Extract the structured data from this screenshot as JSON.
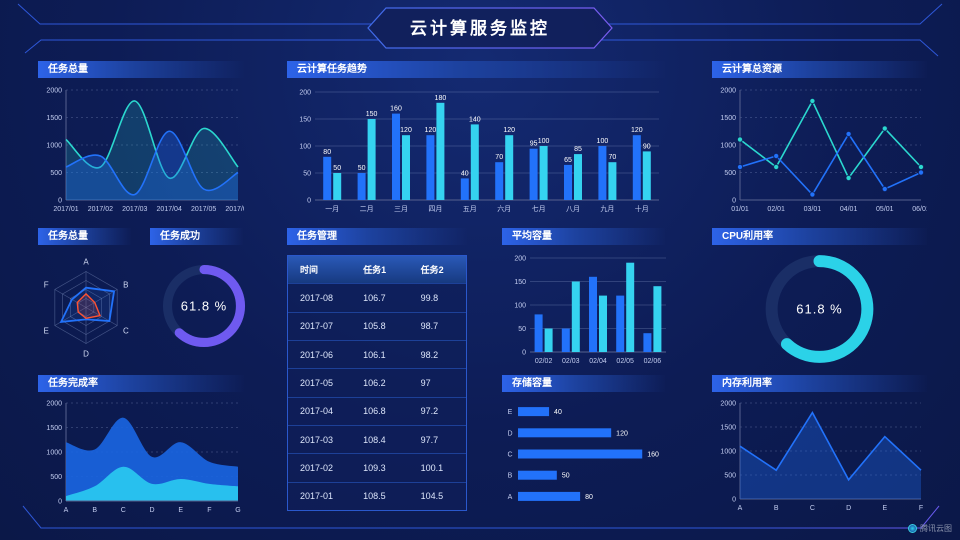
{
  "page": {
    "title": "云计算服务监控",
    "watermark": "腾讯云图"
  },
  "colors": {
    "background": "#0d1c55",
    "frame_line": "#2e57d8",
    "frame_purple": "#6a5af0",
    "axis_line": "#56618f",
    "series": {
      "blue": "#2272fa",
      "cyan": "#35d3f0",
      "teal": "#2bd8cf",
      "purple": "#6f5af0",
      "red": "#ff5232",
      "cyan2": "#2bd2e8"
    },
    "areas": {
      "blue": "rgba(32,105,235,0.35)",
      "teal": "rgba(43,216,207,0.18)",
      "cyan": "rgba(53,211,240,0.30)"
    },
    "donut_track": "#1a2e66"
  },
  "chart_data": [
    {
      "id": "tasks-total-line",
      "type": "line",
      "title": "任务总量",
      "smooth": true,
      "area": true,
      "x": [
        "2017/01",
        "2017/02",
        "2017/03",
        "2017/04",
        "2017/05",
        "2017/06"
      ],
      "ylim": [
        0,
        2000
      ],
      "yticks": [
        0,
        500,
        1000,
        1500,
        2000
      ],
      "series": [
        {
          "name": "series-teal",
          "color": "teal",
          "values": [
            1100,
            600,
            1800,
            400,
            1300,
            600
          ]
        },
        {
          "name": "series-blue",
          "color": "blue",
          "values": [
            600,
            800,
            100,
            1250,
            200,
            500
          ]
        }
      ]
    },
    {
      "id": "cloud-task-trend",
      "type": "bar",
      "title": "云计算任务趋势",
      "labels": true,
      "categories": [
        "一月",
        "二月",
        "三月",
        "四月",
        "五月",
        "六月",
        "七月",
        "八月",
        "九月",
        "十月"
      ],
      "ylim": [
        0,
        200
      ],
      "yticks": [
        0,
        50,
        100,
        150,
        200
      ],
      "series": [
        {
          "name": "series-blue",
          "color": "blue",
          "values": [
            80,
            50,
            160,
            120,
            40,
            70,
            95,
            65,
            100,
            120
          ]
        },
        {
          "name": "series-cyan",
          "color": "cyan",
          "values": [
            50,
            150,
            120,
            180,
            140,
            120,
            100,
            85,
            70,
            90
          ]
        }
      ]
    },
    {
      "id": "cloud-total-resource",
      "type": "line",
      "title": "云计算总资源",
      "markers": true,
      "x": [
        "01/01",
        "02/01",
        "03/01",
        "04/01",
        "05/01",
        "06/01"
      ],
      "ylim": [
        0,
        2000
      ],
      "yticks": [
        0,
        500,
        1000,
        1500,
        2000
      ],
      "series": [
        {
          "name": "series-teal",
          "color": "teal",
          "values": [
            1100,
            600,
            1800,
            400,
            1300,
            600
          ]
        },
        {
          "name": "series-blue",
          "color": "blue",
          "values": [
            600,
            800,
            100,
            1200,
            200,
            500
          ]
        }
      ]
    },
    {
      "id": "tasks-total-radar",
      "type": "radar",
      "title": "任务总量",
      "axes": [
        "A",
        "B",
        "C",
        "D",
        "E",
        "F"
      ],
      "max": 100,
      "series": [
        {
          "name": "series-blue",
          "color": "blue",
          "values": [
            55,
            90,
            75,
            33,
            80,
            45
          ]
        },
        {
          "name": "series-red",
          "color": "red",
          "values": [
            38,
            28,
            45,
            30,
            25,
            28
          ]
        }
      ]
    },
    {
      "id": "task-success-donut",
      "type": "donut",
      "title": "任务成功",
      "value": 61.8,
      "label": "61.8 %",
      "color": "purple"
    },
    {
      "id": "task-table",
      "type": "table",
      "title": "任务管理",
      "headers": [
        "时间",
        "任务1",
        "任务2"
      ],
      "rows": [
        [
          "2017-08",
          "106.7",
          "99.8"
        ],
        [
          "2017-07",
          "105.8",
          "98.7"
        ],
        [
          "2017-06",
          "106.1",
          "98.2"
        ],
        [
          "2017-05",
          "106.2",
          "97"
        ],
        [
          "2017-04",
          "106.8",
          "97.2"
        ],
        [
          "2017-03",
          "108.4",
          "97.7"
        ],
        [
          "2017-02",
          "109.3",
          "100.1"
        ],
        [
          "2017-01",
          "108.5",
          "104.5"
        ]
      ]
    },
    {
      "id": "avg-capacity",
      "type": "bar",
      "title": "平均容量",
      "labels": false,
      "categories": [
        "02/02",
        "02/03",
        "02/04",
        "02/05",
        "02/06"
      ],
      "ylim": [
        0,
        200
      ],
      "yticks": [
        0,
        50,
        100,
        150,
        200
      ],
      "series": [
        {
          "name": "series-blue",
          "color": "blue",
          "values": [
            80,
            50,
            160,
            120,
            40
          ]
        },
        {
          "name": "series-cyan",
          "color": "cyan",
          "values": [
            50,
            150,
            120,
            190,
            140
          ]
        }
      ]
    },
    {
      "id": "cpu-donut",
      "type": "donut",
      "title": "CPU利用率",
      "value": 61.8,
      "label": "61.8 %",
      "color": "cyan2"
    },
    {
      "id": "task-completion",
      "type": "stacked-area",
      "title": "任务完成率",
      "smooth": true,
      "x": [
        "A",
        "B",
        "C",
        "D",
        "E",
        "F",
        "G"
      ],
      "ylim": [
        0,
        2000
      ],
      "yticks": [
        0,
        500,
        1000,
        1500,
        2000
      ],
      "series": [
        {
          "name": "series-blue",
          "color": "blue",
          "values": [
            1200,
            1050,
            1700,
            900,
            1200,
            800,
            700
          ]
        },
        {
          "name": "series-cyan",
          "color": "cyan",
          "values": [
            100,
            300,
            700,
            350,
            450,
            350,
            300
          ]
        }
      ]
    },
    {
      "id": "storage-hbar",
      "type": "hbar",
      "title": "存储容量",
      "categories": [
        "E",
        "D",
        "C",
        "B",
        "A"
      ],
      "values": [
        40,
        120,
        160,
        50,
        80
      ],
      "xmax": 170
    },
    {
      "id": "memory-line",
      "type": "line",
      "title": "内存利用率",
      "area": true,
      "x": [
        "A",
        "B",
        "C",
        "D",
        "E",
        "F"
      ],
      "ylim": [
        0,
        2000
      ],
      "yticks": [
        0,
        500,
        1000,
        1500,
        2000
      ],
      "series": [
        {
          "name": "series-blue",
          "color": "blue",
          "values": [
            1100,
            600,
            1800,
            400,
            1300,
            600
          ]
        }
      ]
    }
  ]
}
